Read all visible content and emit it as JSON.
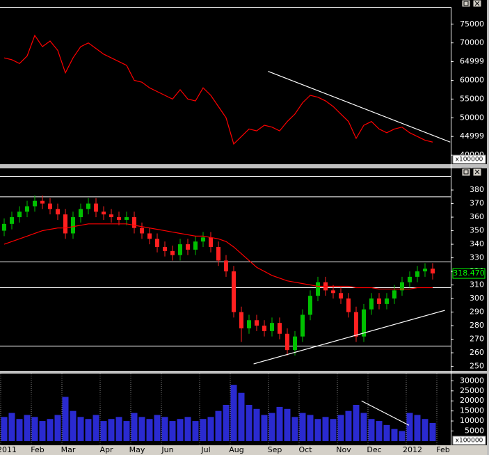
{
  "chart_data": [
    {
      "type": "line",
      "color": "#ff0000",
      "multiplier": "x100000",
      "ylim": [
        37600,
        79600
      ],
      "yticks": [
        75000,
        70000,
        64999,
        60000,
        55000,
        50000,
        44999,
        40000
      ],
      "values": [
        66000,
        65500,
        64500,
        66500,
        72000,
        69000,
        70500,
        68000,
        62000,
        66000,
        69000,
        70000,
        68500,
        67000,
        66000,
        65000,
        64000,
        60000,
        59500,
        58000,
        57000,
        56000,
        55000,
        57500,
        55000,
        54500,
        58000,
        56000,
        53000,
        50000,
        43000,
        45000,
        47000,
        46500,
        48000,
        47500,
        46500,
        49000,
        51000,
        54000,
        56000,
        55500,
        54500,
        53000,
        51000,
        49000,
        44500,
        48000,
        49000,
        47000,
        46000,
        47000,
        47500,
        46000,
        45000,
        44000,
        43500,
        null,
        null
      ],
      "trendlines": [
        {
          "x": [
            34.5,
            58.3
          ],
          "y": [
            62400,
            43500
          ]
        }
      ]
    },
    {
      "type": "candlestick",
      "up_color": "#00c000",
      "down_color": "#ff2020",
      "ma_color": "#ff0000",
      "ylim": [
        246.7,
        390.3
      ],
      "yticks": [
        380,
        370,
        360,
        350,
        340,
        330,
        320,
        310,
        300,
        290,
        280,
        270,
        260,
        250
      ],
      "open": [
        350,
        355,
        360,
        364,
        368,
        372,
        370,
        366,
        362,
        348,
        360,
        366,
        370,
        364,
        362,
        360,
        358,
        360,
        352,
        348,
        344,
        338,
        335,
        332,
        340,
        336,
        342,
        345,
        338,
        328,
        320,
        290,
        278,
        284,
        280,
        276,
        282,
        274,
        262,
        272,
        288,
        302,
        312,
        306,
        304,
        300,
        290,
        272,
        292,
        300,
        296,
        300,
        306,
        312,
        316,
        320,
        322,
        null,
        null
      ],
      "high": [
        359,
        364,
        368,
        372,
        376,
        376,
        374,
        370,
        366,
        364,
        370,
        374,
        374,
        368,
        366,
        364,
        364,
        364,
        356,
        352,
        348,
        342,
        339,
        344,
        344,
        346,
        349,
        349,
        342,
        332,
        324,
        294,
        288,
        288,
        284,
        286,
        286,
        278,
        276,
        292,
        306,
        316,
        316,
        310,
        308,
        304,
        294,
        296,
        304,
        304,
        304,
        310,
        316,
        320,
        324,
        326,
        326,
        null,
        null
      ],
      "low": [
        346,
        351,
        356,
        360,
        364,
        366,
        362,
        358,
        344,
        344,
        356,
        362,
        360,
        358,
        356,
        354,
        354,
        348,
        344,
        340,
        334,
        331,
        328,
        328,
        332,
        332,
        338,
        334,
        324,
        316,
        286,
        268,
        274,
        276,
        272,
        272,
        270,
        258,
        258,
        268,
        284,
        298,
        302,
        300,
        296,
        286,
        268,
        268,
        288,
        292,
        292,
        296,
        302,
        308,
        312,
        316,
        314,
        null,
        null
      ],
      "close": [
        355,
        360,
        364,
        368,
        372,
        370,
        366,
        362,
        348,
        360,
        366,
        370,
        364,
        362,
        360,
        358,
        360,
        352,
        348,
        344,
        338,
        335,
        332,
        340,
        336,
        342,
        345,
        338,
        328,
        320,
        290,
        278,
        284,
        280,
        276,
        282,
        274,
        262,
        272,
        288,
        302,
        312,
        306,
        304,
        300,
        290,
        272,
        292,
        300,
        296,
        300,
        306,
        312,
        316,
        320,
        322,
        318.47,
        null,
        null
      ],
      "ma": [
        340,
        342,
        344,
        346,
        348,
        350,
        351,
        352,
        352,
        353,
        354,
        355,
        355,
        355,
        355,
        355,
        355,
        354,
        353,
        352,
        351,
        350,
        349,
        348,
        347,
        346,
        346,
        345,
        344,
        342,
        338,
        333,
        328,
        323,
        320,
        317,
        315,
        313,
        312,
        311,
        310,
        309,
        309,
        309,
        309,
        309,
        308,
        308,
        308,
        307,
        307,
        307,
        307,
        307,
        308,
        308,
        308,
        null,
        null
      ],
      "last_value": {
        "value": 318.47,
        "label": "318.470"
      },
      "hlines": [
        375,
        327,
        308,
        265
      ],
      "trendlines": [
        {
          "x": [
            32.6,
            57.6
          ],
          "y": [
            251.8,
            291.3
          ]
        }
      ]
    },
    {
      "type": "bar",
      "color": "#2a2ad0",
      "multiplier": "x100000",
      "ylim": [
        -2100,
        33600
      ],
      "yticks": [
        30000,
        25000,
        20000,
        15000,
        10000,
        5000
      ],
      "categories": [
        "2011",
        null,
        null,
        null,
        "Feb",
        null,
        null,
        null,
        "Mar",
        null,
        null,
        null,
        null,
        "Apr",
        null,
        null,
        null,
        "May",
        null,
        null,
        null,
        "Jun",
        null,
        null,
        null,
        null,
        "Jul",
        null,
        null,
        null,
        "Aug",
        null,
        null,
        null,
        null,
        "Sep",
        null,
        null,
        null,
        "Oct",
        null,
        null,
        null,
        null,
        "Nov",
        null,
        null,
        null,
        "Dec",
        null,
        null,
        null,
        null,
        "2012",
        null,
        null,
        null,
        "Feb",
        null
      ],
      "values": [
        12000,
        14000,
        11000,
        13000,
        12000,
        10000,
        11000,
        13000,
        22000,
        15000,
        12000,
        11000,
        13000,
        10000,
        11000,
        12000,
        10000,
        14000,
        12000,
        11000,
        13000,
        12000,
        10000,
        11000,
        12000,
        10000,
        11000,
        12000,
        15000,
        18000,
        28000,
        24000,
        18000,
        16000,
        13000,
        14000,
        17000,
        16000,
        12000,
        14000,
        13000,
        11000,
        12000,
        11000,
        13000,
        15000,
        18000,
        14000,
        11000,
        10000,
        8000,
        6000,
        5000,
        14000,
        13000,
        11000,
        9000,
        null,
        null
      ],
      "trendlines": [
        {
          "x": [
            46.7,
            52.9
          ],
          "y": [
            20000,
            7857
          ]
        }
      ]
    }
  ]
}
